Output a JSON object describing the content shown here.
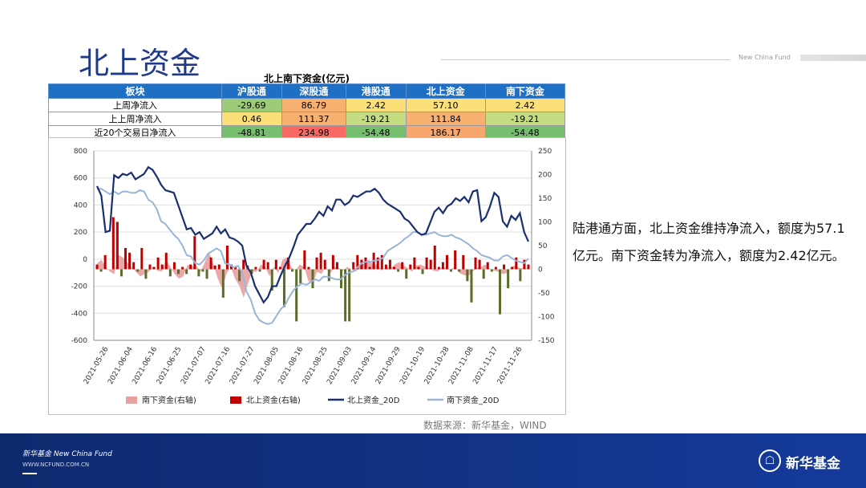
{
  "page": {
    "title": "北上资金",
    "brand_en": "New China Fund",
    "commentary": "陆港通方面，北上资金维持净流入，额度为57.1亿元。南下资金转为净流入，额度为2.42亿元。",
    "source": "数据来源：新华基金，WIND"
  },
  "footer": {
    "brand_line": "新华基金 New China Fund",
    "url": "WWW.NCFUND.COM.CN",
    "logo_text": "新华基金"
  },
  "table": {
    "title": "北上南下资金(亿元)",
    "headers": [
      "板块",
      "沪股通",
      "深股通",
      "港股通",
      "北上资金",
      "南下资金"
    ],
    "rows": [
      {
        "label": "上周净流入",
        "values": [
          "-29.69",
          "86.79",
          "2.42",
          "57.10",
          "2.42"
        ],
        "colors": [
          "#9ccc78",
          "#f8b070",
          "#fbe07a",
          "#fbe07a",
          "#fbe07a"
        ]
      },
      {
        "label": "上上周净流入",
        "values": [
          "0.46",
          "111.37",
          "-19.21",
          "111.84",
          "-19.21"
        ],
        "colors": [
          "#fbe07a",
          "#f8b070",
          "#c4dc82",
          "#f8b070",
          "#c4dc82"
        ]
      },
      {
        "label": "近20个交易日净流入",
        "values": [
          "-48.81",
          "234.98",
          "-54.48",
          "186.17",
          "-54.48"
        ],
        "colors": [
          "#76bf6e",
          "#f86a66",
          "#76bf6e",
          "#f8a66c",
          "#76bf6e"
        ]
      }
    ]
  },
  "chart_data": {
    "type": "bar",
    "title": "",
    "y_left": {
      "min": -600,
      "max": 800,
      "ticks": [
        800,
        600,
        400,
        200,
        0,
        -200,
        -400,
        -600
      ]
    },
    "y_right": {
      "min": -150,
      "max": 250,
      "ticks": [
        250,
        200,
        150,
        100,
        50,
        0,
        -50,
        -100,
        -150
      ]
    },
    "x_ticks": [
      "2021-05-26",
      "2021-06-04",
      "2021-06-16",
      "2021-06-25",
      "2021-07-07",
      "2021-07-16",
      "2021-07-27",
      "2021-08-05",
      "2021-08-16",
      "2021-08-25",
      "2021-09-03",
      "2021-09-14",
      "2021-09-29",
      "2021-10-19",
      "2021-10-28",
      "2021-11-08",
      "2021-11-17",
      "2021-11-26"
    ],
    "grid": true,
    "legend_position": "bottom",
    "colors": {
      "south_bar": "#e8a0a0",
      "north_bar": "#c00000",
      "north_bar_neg": "#5a6e2a",
      "north_20d": "#1a2f6e",
      "south_20d": "#9ab5d8"
    },
    "series": [
      {
        "name": "南下资金(右轴)",
        "axis": "right",
        "kind": "area",
        "values": [
          12,
          20,
          5,
          -5,
          -10,
          30,
          25,
          15,
          5,
          -5,
          -15,
          -10,
          -5,
          5,
          -3,
          -5,
          20,
          5,
          -10,
          -20,
          -15,
          10,
          5,
          8,
          -5,
          15,
          35,
          10,
          -20,
          -40,
          -10,
          5,
          -20,
          -35,
          -60,
          -30,
          -5,
          -5,
          10,
          5,
          -15,
          5,
          -8,
          20,
          25,
          5,
          -3,
          10,
          5,
          -25,
          -30,
          -5,
          -10,
          5,
          -10,
          5,
          3,
          -3,
          5,
          0,
          -5,
          8,
          12,
          20,
          10,
          10,
          -3,
          5,
          2,
          10,
          15,
          8,
          3,
          -5,
          8,
          10,
          5,
          3,
          -3,
          -5,
          5,
          3,
          0,
          5,
          -8,
          -12,
          -15,
          -5,
          3,
          5,
          10,
          2,
          -3,
          -5,
          -10,
          -8,
          5,
          8,
          3,
          2,
          2
        ]
      },
      {
        "name": "北上资金(右轴)",
        "axis": "right",
        "kind": "bar",
        "values": [
          10,
          -5,
          30,
          0,
          110,
          100,
          -15,
          45,
          35,
          15,
          -5,
          45,
          -20,
          10,
          5,
          25,
          10,
          35,
          -15,
          15,
          -10,
          5,
          -10,
          10,
          70,
          -15,
          -5,
          -20,
          25,
          8,
          10,
          -60,
          50,
          10,
          5,
          -25,
          20,
          8,
          -10,
          5,
          -5,
          20,
          15,
          -45,
          20,
          5,
          -80,
          25,
          -5,
          -110,
          -30,
          40,
          5,
          -40,
          25,
          35,
          20,
          -25,
          30,
          15,
          -40,
          -110,
          -110,
          15,
          30,
          20,
          25,
          5,
          35,
          25,
          30,
          10,
          20,
          5,
          -5,
          15,
          -20,
          10,
          25,
          5,
          -10,
          25,
          20,
          50,
          5,
          15,
          30,
          -5,
          40,
          -5,
          30,
          -25,
          -70,
          25,
          20,
          -20,
          15,
          -5,
          5,
          -95,
          10,
          -40,
          5,
          25,
          -25,
          20,
          10
        ]
      },
      {
        "name": "北上资金_20D",
        "axis": "left",
        "kind": "line",
        "values": [
          540,
          470,
          200,
          210,
          620,
          600,
          630,
          620,
          640,
          590,
          610,
          630,
          680,
          660,
          610,
          550,
          510,
          500,
          490,
          400,
          310,
          220,
          230,
          180,
          200,
          150,
          170,
          190,
          240,
          190,
          220,
          160,
          150,
          130,
          100,
          -50,
          -100,
          -200,
          -260,
          -320,
          -280,
          -200,
          -200,
          -120,
          -50,
          10,
          90,
          180,
          220,
          260,
          260,
          300,
          350,
          320,
          390,
          360,
          440,
          440,
          400,
          420,
          470,
          460,
          480,
          500,
          500,
          520,
          490,
          440,
          410,
          390,
          370,
          350,
          300,
          280,
          240,
          200,
          180,
          190,
          270,
          350,
          380,
          340,
          390,
          410,
          450,
          430,
          460,
          420,
          500,
          510,
          280,
          310,
          390,
          490,
          460,
          280,
          240,
          320,
          290,
          340,
          200,
          130
        ]
      },
      {
        "name": "南下资金_20D",
        "axis": "left",
        "kind": "line",
        "values": [
          520,
          520,
          500,
          480,
          500,
          480,
          500,
          500,
          490,
          490,
          510,
          500,
          440,
          420,
          370,
          280,
          260,
          220,
          180,
          150,
          100,
          30,
          20,
          -30,
          -40,
          -10,
          40,
          60,
          80,
          60,
          -30,
          -40,
          -60,
          -50,
          -100,
          -240,
          -300,
          -400,
          -450,
          -470,
          -480,
          -470,
          -420,
          -370,
          -340,
          -280,
          -230,
          -200,
          -180,
          -190,
          -170,
          -150,
          -160,
          -130,
          -130,
          -140,
          -150,
          -150,
          -120,
          -100,
          -90,
          -60,
          -30,
          -20,
          -20,
          -10,
          -5,
          10,
          60,
          80,
          100,
          120,
          150,
          170,
          200,
          200,
          180,
          180,
          190,
          200,
          180,
          170,
          170,
          180,
          160,
          150,
          130,
          110,
          80,
          60,
          30,
          20,
          10,
          -10,
          -10,
          20,
          30,
          10,
          -10,
          -20,
          -30,
          5
        ]
      }
    ]
  }
}
